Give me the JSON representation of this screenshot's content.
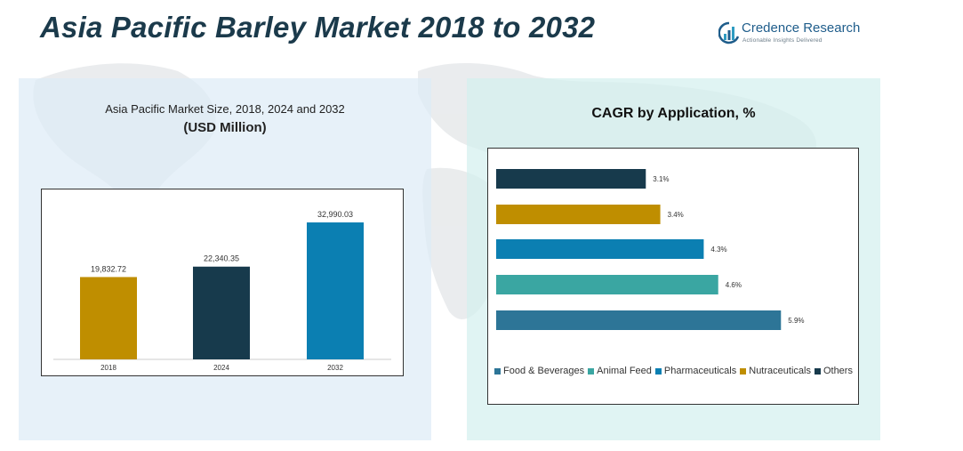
{
  "header": {
    "title_main": "Asia Pacific Barley Market ",
    "title_years": "2018 to 2032",
    "brand_name": "Credence Research",
    "brand_tagline": "Actionable Insights Delivered"
  },
  "left_panel": {
    "subtitle": "Asia Pacific Market Size, 2018, 2024 and 2032",
    "unit": "(USD Million)"
  },
  "right_panel": {
    "title": "CAGR by Application, %"
  },
  "chart_data": [
    {
      "type": "bar",
      "title": "Asia Pacific Market Size, 2018, 2024 and 2032",
      "ylabel": "(USD Million)",
      "categories": [
        "2018",
        "2024",
        "2032"
      ],
      "values": [
        19832.72,
        22340.35,
        32990.03
      ],
      "labels": [
        "19,832.72",
        "22,340.35",
        "32,990.03"
      ],
      "colors": [
        "#bf8e00",
        "#173a4c",
        "#0b7fb2"
      ],
      "ylim": [
        0,
        36000
      ],
      "grid": false
    },
    {
      "type": "bar",
      "orientation": "horizontal",
      "title": "CAGR by Application, %",
      "categories": [
        "Others",
        "Nutraceuticals",
        "Pharmaceuticals",
        "Animal Feed",
        "Food & Beverages"
      ],
      "values": [
        3.1,
        3.4,
        4.3,
        4.6,
        5.9
      ],
      "labels": [
        "3.1%",
        "3.4%",
        "4.3%",
        "4.6%",
        "5.9%"
      ],
      "colors": [
        "#173a4c",
        "#bf8e00",
        "#0b7fb2",
        "#3aa6a2",
        "#2d7597"
      ],
      "xlim": [
        0,
        7.0
      ],
      "grid": false,
      "legend_position": "bottom",
      "legend": [
        {
          "label": "Food & Beverages",
          "color": "#2d7597"
        },
        {
          "label": "Animal Feed",
          "color": "#3aa6a2"
        },
        {
          "label": "Pharmaceuticals",
          "color": "#0b7fb2"
        },
        {
          "label": "Nutraceuticals",
          "color": "#bf8e00"
        },
        {
          "label": "Others",
          "color": "#173a4c"
        }
      ]
    }
  ]
}
